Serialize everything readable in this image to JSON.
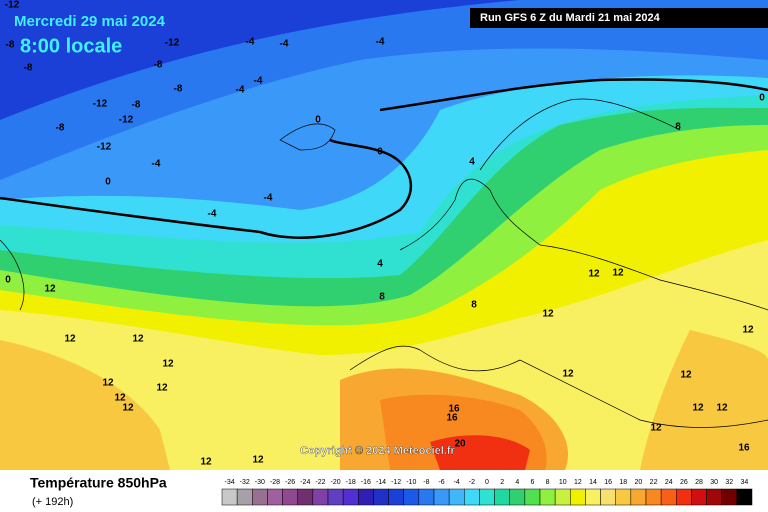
{
  "header": {
    "date": "Mercredi 29 mai 2024",
    "time": "8:00 locale",
    "run": "Run GFS 6 Z du Mardi 21 mai 2024"
  },
  "footer": {
    "title": "Température 850hPa",
    "subtitle": "(+ 192h)",
    "copyright": "Copyright © 2024 Meteociel.fr"
  },
  "legend": {
    "values": [
      -34,
      -32,
      -30,
      -28,
      -26,
      -24,
      -22,
      -20,
      -18,
      -16,
      -14,
      -12,
      -10,
      -8,
      -6,
      -4,
      -2,
      0,
      2,
      4,
      6,
      8,
      10,
      12,
      14,
      16,
      18,
      20,
      22,
      24,
      26,
      28,
      30,
      32,
      34
    ],
    "colors": [
      "#c8c8c8",
      "#a8a0a8",
      "#987090",
      "#a060a0",
      "#904890",
      "#703070",
      "#8040a8",
      "#6040c0",
      "#5030d0",
      "#3020b0",
      "#2030c8",
      "#1a40d8",
      "#1a5ae8",
      "#2a78f0",
      "#3a98f8",
      "#40b8f8",
      "#40d8f8",
      "#30e0d0",
      "#20d8a0",
      "#30d070",
      "#50e050",
      "#90f040",
      "#c8f040",
      "#f0f000",
      "#f8f060",
      "#f8e070",
      "#f8c840",
      "#f8a830",
      "#f88820",
      "#f86018",
      "#f03010",
      "#d01010",
      "#a00808",
      "#700000",
      "#000000"
    ]
  },
  "contour_labels": [
    -12,
    -8,
    -12,
    -4,
    -4,
    -4,
    -8,
    -8,
    -8,
    -4,
    -4,
    -12,
    -8,
    -12,
    -8,
    -12,
    -4,
    0,
    -4,
    -4,
    0,
    0,
    4,
    8,
    0,
    4,
    8,
    12,
    12,
    12,
    12,
    12,
    12,
    12,
    12,
    8,
    12,
    12,
    12,
    12,
    12,
    12,
    16,
    16,
    20,
    12,
    12,
    12,
    16,
    12,
    12,
    0
  ]
}
